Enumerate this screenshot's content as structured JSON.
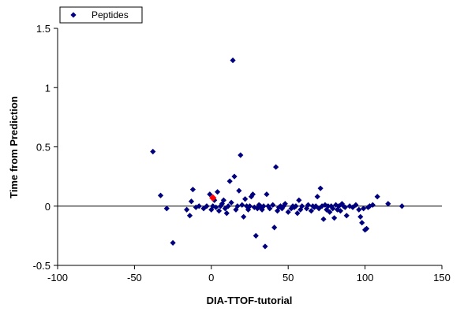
{
  "chart_data": {
    "type": "scatter",
    "title": "",
    "xlabel": "DIA-TTOF-tutorial",
    "ylabel": "Time from Prediction",
    "xlim": [
      -100,
      150
    ],
    "ylim": [
      -0.5,
      1.5
    ],
    "xticks": [
      -100,
      -50,
      0,
      50,
      100,
      150
    ],
    "yticks": [
      -0.5,
      0,
      0.5,
      1,
      1.5
    ],
    "xtick_labels": [
      "-100",
      "-50",
      "0",
      "50",
      "100",
      "150"
    ],
    "ytick_labels": [
      "-0.5",
      "0",
      "0.5",
      "1",
      "1.5"
    ],
    "grid": false,
    "zero_line": true,
    "legend": {
      "position": "top-left",
      "entries": [
        "Peptides"
      ]
    },
    "colors": {
      "series": "#00007f",
      "highlight": "#ff0000"
    },
    "series": [
      {
        "name": "Peptides",
        "color": "#00007f",
        "marker": "diamond",
        "points": [
          [
            -38,
            0.46
          ],
          [
            -33,
            0.09
          ],
          [
            -29,
            -0.02
          ],
          [
            -25,
            -0.31
          ],
          [
            -16,
            -0.03
          ],
          [
            -14,
            -0.08
          ],
          [
            -13,
            0.04
          ],
          [
            -12,
            0.14
          ],
          [
            -10,
            -0.01
          ],
          [
            -8,
            0.0
          ],
          [
            -5,
            -0.02
          ],
          [
            -3,
            0.0
          ],
          [
            -1,
            0.1
          ],
          [
            0,
            -0.03
          ],
          [
            1,
            0.0
          ],
          [
            2,
            0.05
          ],
          [
            3,
            -0.01
          ],
          [
            4,
            0.12
          ],
          [
            5,
            -0.04
          ],
          [
            6,
            0.0
          ],
          [
            7,
            0.02
          ],
          [
            8,
            0.05
          ],
          [
            9,
            -0.02
          ],
          [
            10,
            -0.06
          ],
          [
            11,
            0.0
          ],
          [
            12,
            0.21
          ],
          [
            13,
            0.03
          ],
          [
            14,
            1.23
          ],
          [
            15,
            0.25
          ],
          [
            16,
            -0.03
          ],
          [
            17,
            0.0
          ],
          [
            18,
            0.13
          ],
          [
            19,
            0.43
          ],
          [
            20,
            0.01
          ],
          [
            21,
            -0.09
          ],
          [
            22,
            0.06
          ],
          [
            23,
            0.0
          ],
          [
            24,
            -0.03
          ],
          [
            25,
            0.0
          ],
          [
            26,
            0.08
          ],
          [
            27,
            0.1
          ],
          [
            28,
            -0.01
          ],
          [
            29,
            -0.25
          ],
          [
            30,
            -0.02
          ],
          [
            31,
            0.01
          ],
          [
            32,
            0.0
          ],
          [
            33,
            -0.03
          ],
          [
            34,
            0.0
          ],
          [
            35,
            -0.34
          ],
          [
            36,
            0.1
          ],
          [
            37,
            0.0
          ],
          [
            38,
            -0.02
          ],
          [
            40,
            0.01
          ],
          [
            41,
            -0.18
          ],
          [
            42,
            0.33
          ],
          [
            43,
            -0.04
          ],
          [
            44,
            -0.01
          ],
          [
            45,
            0.0
          ],
          [
            46,
            -0.02
          ],
          [
            47,
            0.0
          ],
          [
            48,
            0.02
          ],
          [
            50,
            -0.05
          ],
          [
            52,
            -0.02
          ],
          [
            53,
            0.0
          ],
          [
            54,
            -0.01
          ],
          [
            55,
            0.0
          ],
          [
            56,
            -0.06
          ],
          [
            57,
            0.05
          ],
          [
            58,
            -0.03
          ],
          [
            59,
            0.0
          ],
          [
            62,
            -0.02
          ],
          [
            63,
            0.01
          ],
          [
            65,
            -0.04
          ],
          [
            66,
            0.0
          ],
          [
            67,
            -0.01
          ],
          [
            68,
            0.0
          ],
          [
            69,
            0.08
          ],
          [
            70,
            -0.02
          ],
          [
            71,
            0.15
          ],
          [
            72,
            0.0
          ],
          [
            73,
            -0.11
          ],
          [
            74,
            0.01
          ],
          [
            75,
            -0.03
          ],
          [
            76,
            0.0
          ],
          [
            77,
            -0.05
          ],
          [
            78,
            0.0
          ],
          [
            79,
            -0.02
          ],
          [
            80,
            -0.1
          ],
          [
            81,
            0.01
          ],
          [
            82,
            -0.03
          ],
          [
            83,
            0.0
          ],
          [
            84,
            -0.04
          ],
          [
            85,
            0.02
          ],
          [
            86,
            0.0
          ],
          [
            87,
            -0.01
          ],
          [
            88,
            -0.08
          ],
          [
            90,
            0.0
          ],
          [
            92,
            -0.01
          ],
          [
            94,
            0.01
          ],
          [
            96,
            -0.03
          ],
          [
            97,
            -0.09
          ],
          [
            98,
            -0.14
          ],
          [
            99,
            -0.02
          ],
          [
            100,
            -0.2
          ],
          [
            101,
            -0.19
          ],
          [
            102,
            -0.01
          ],
          [
            103,
            0.0
          ],
          [
            105,
            0.01
          ],
          [
            108,
            0.08
          ],
          [
            115,
            0.02
          ],
          [
            124,
            0.0
          ]
        ]
      },
      {
        "name": "",
        "color": "#ff0000",
        "marker": "diamond",
        "points": [
          [
            1,
            0.07
          ]
        ]
      }
    ]
  }
}
